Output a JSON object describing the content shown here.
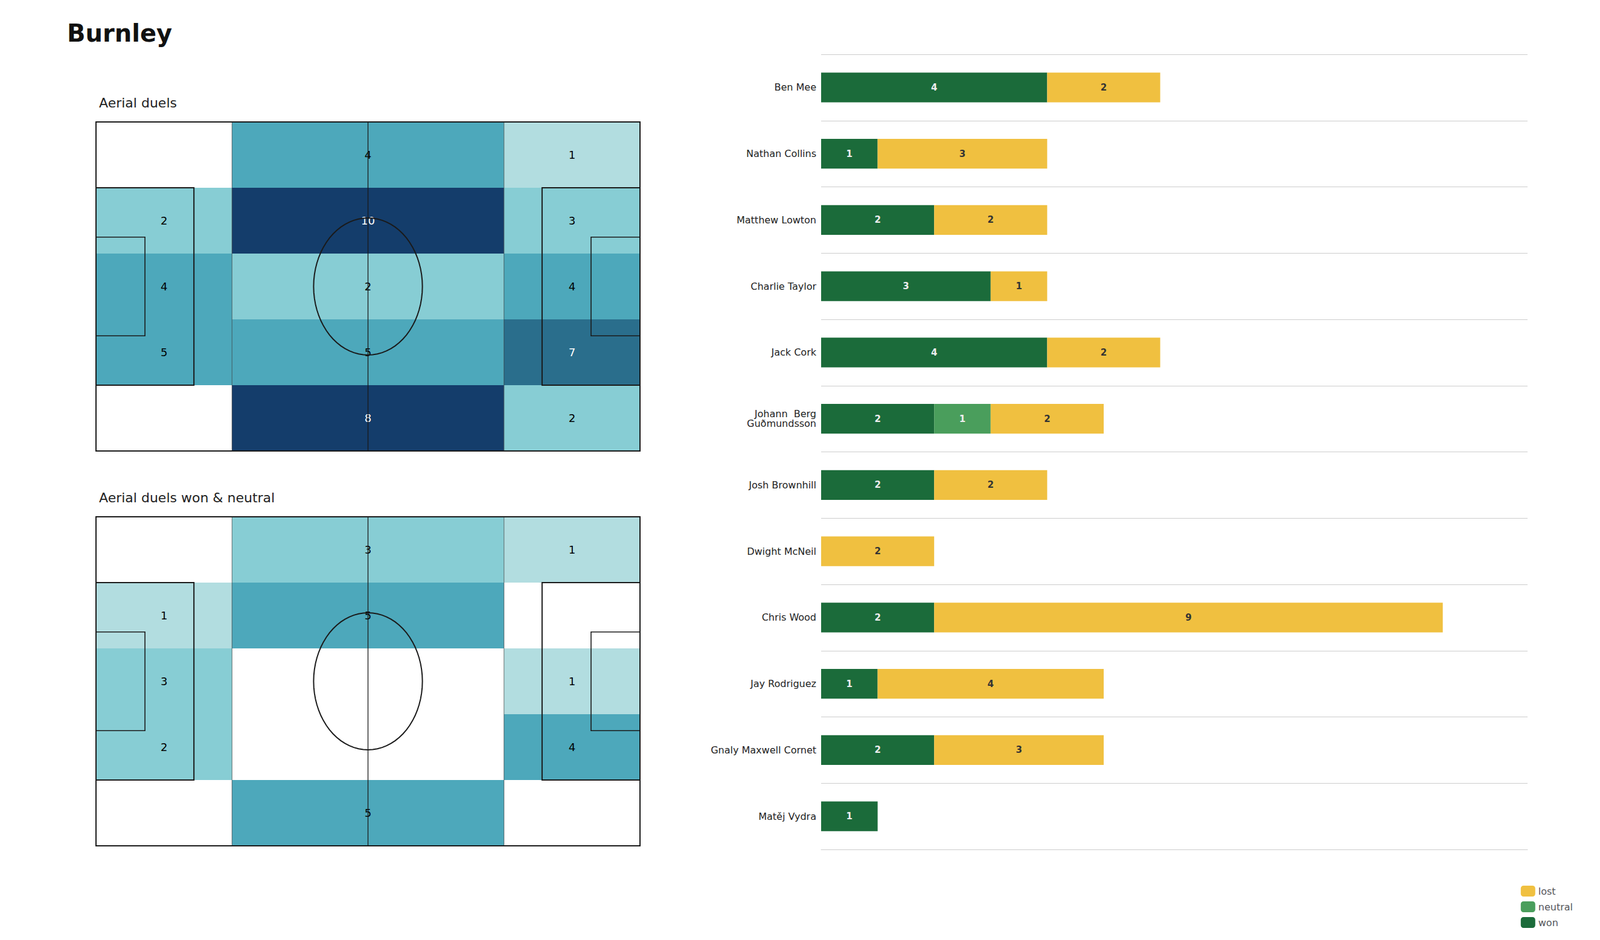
{
  "chart_data": [
    {
      "type": "heatmap",
      "title": "Aerial duels",
      "cells": [
        [
          0,
          4,
          1
        ],
        [
          2,
          10,
          3
        ],
        [
          4,
          2,
          4
        ],
        [
          5,
          5,
          7
        ],
        [
          0,
          8,
          2
        ]
      ],
      "color_thresholds": [
        1,
        3,
        5,
        7,
        10
      ],
      "colors": [
        "#b2dde0",
        "#87cdd4",
        "#4da8bb",
        "#2a6e8c",
        "#143d6b"
      ],
      "data_labels": true,
      "tick_labels": false
    },
    {
      "type": "heatmap",
      "title": "Aerial duels won & neutral",
      "cells": [
        [
          0,
          3,
          1
        ],
        [
          1,
          5,
          0
        ],
        [
          3,
          0,
          1
        ],
        [
          2,
          0,
          4
        ],
        [
          0,
          5,
          0
        ]
      ],
      "color_thresholds": [
        1,
        3,
        5,
        7,
        10
      ],
      "colors": [
        "#b2dde0",
        "#87cdd4",
        "#4da8bb",
        "#2a6e8c",
        "#143d6b"
      ],
      "data_labels": true,
      "tick_labels": false
    },
    {
      "type": "bar",
      "title": "Burnley",
      "orientation": "horizontal",
      "stacked": true,
      "categories": [
        "Ben Mee",
        "Nathan Collins",
        "Matthew Lowton",
        "Charlie Taylor",
        "Jack Cork",
        "Johann  Berg\nGuðmundsson",
        "Josh Brownhill",
        "Dwight McNeil",
        "Chris Wood",
        "Jay Rodriguez",
        "Gnaly Maxwell Cornet",
        "Matěj Vydra"
      ],
      "series": [
        {
          "name": "won",
          "color": "#1b6b3a",
          "values": [
            4,
            1,
            2,
            3,
            4,
            2,
            2,
            0,
            2,
            1,
            2,
            1
          ]
        },
        {
          "name": "neutral",
          "color": "#4a9e5c",
          "values": [
            0,
            0,
            0,
            0,
            0,
            1,
            0,
            0,
            0,
            0,
            0,
            0
          ]
        },
        {
          "name": "lost",
          "color": "#f0c040",
          "values": [
            2,
            3,
            2,
            1,
            2,
            2,
            2,
            2,
            9,
            4,
            3,
            0
          ]
        }
      ],
      "xlim": [
        0,
        12.5
      ],
      "grid": true,
      "legend": "lower right",
      "data_labels": true,
      "tick_labels": "y"
    }
  ]
}
